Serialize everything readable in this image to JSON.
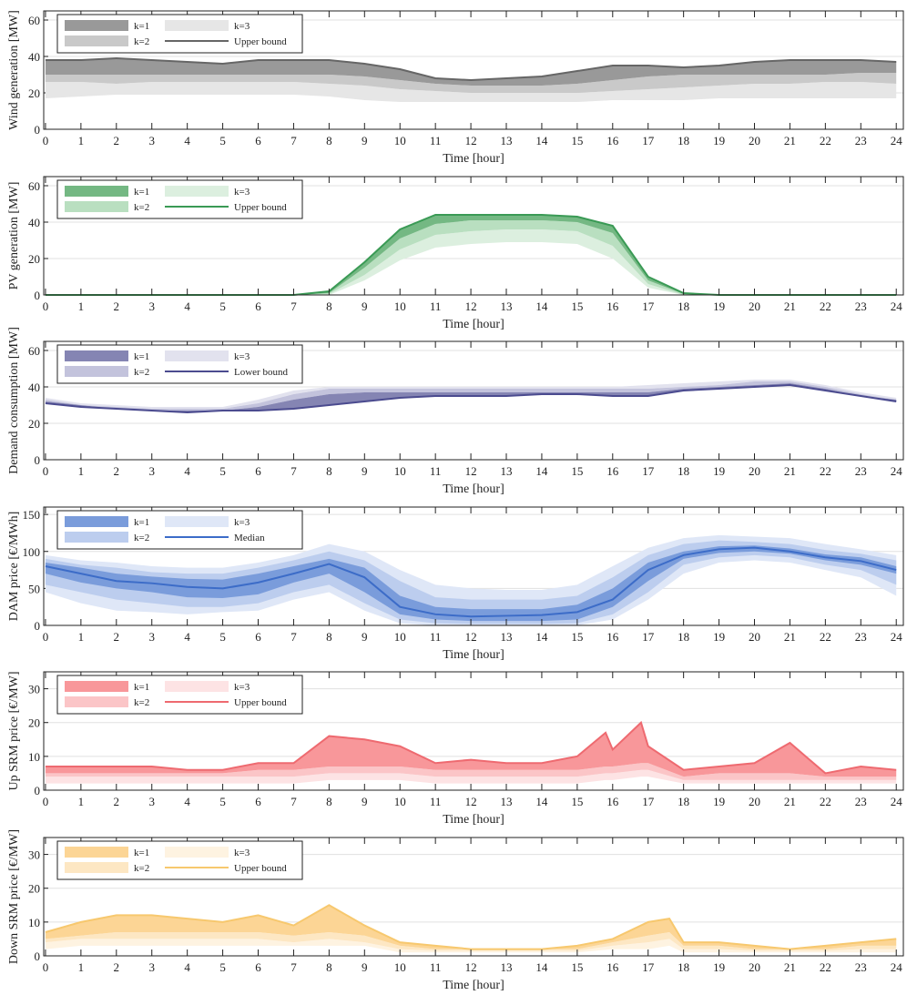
{
  "chart_data": [
    {
      "type": "area",
      "ylabel": "Wind generation [MW]",
      "xlabel": "Time [hour]",
      "ylim": [
        0,
        65
      ],
      "yticks": [
        0,
        20,
        40,
        60
      ],
      "xlim": [
        -0.05,
        24.2
      ],
      "x": [
        0,
        1,
        2,
        3,
        4,
        5,
        6,
        7,
        8,
        9,
        10,
        11,
        12,
        13,
        14,
        15,
        16,
        17,
        18,
        19,
        20,
        21,
        22,
        23,
        24
      ],
      "colors": {
        "k1": "#999999",
        "k2": "#c9c9c9",
        "k3": "#e6e6e6",
        "line": "#666666"
      },
      "line": {
        "name": "Upper bound",
        "values": [
          38,
          38,
          39,
          38,
          37,
          36,
          38,
          38,
          38,
          36,
          33,
          28,
          27,
          28,
          29,
          32,
          35,
          35,
          34,
          35,
          37,
          38,
          38,
          38,
          37
        ]
      },
      "bands": [
        {
          "name": "k=1",
          "lower": [
            30,
            30,
            30,
            30,
            30,
            30,
            30,
            30,
            30,
            29,
            27,
            25,
            24,
            24,
            24,
            25,
            27,
            29,
            30,
            30,
            30,
            30,
            30,
            31,
            31
          ],
          "upper": "line"
        },
        {
          "name": "k=2",
          "lower": [
            26,
            26,
            25,
            26,
            26,
            26,
            26,
            26,
            25,
            24,
            22,
            21,
            20,
            20,
            20,
            20,
            21,
            22,
            23,
            24,
            25,
            25,
            26,
            26,
            25
          ],
          "upper": "k1"
        },
        {
          "name": "k=3",
          "lower": [
            17,
            18,
            19,
            19,
            19,
            19,
            19,
            19,
            18,
            16,
            15,
            15,
            15,
            15,
            15,
            15,
            16,
            16,
            16,
            17,
            17,
            17,
            17,
            17,
            17
          ],
          "upper": "k2"
        }
      ]
    },
    {
      "type": "area",
      "ylabel": "PV generation [MW]",
      "xlabel": "Time [hour]",
      "ylim": [
        0,
        65
      ],
      "yticks": [
        0,
        20,
        40,
        60
      ],
      "xlim": [
        -0.05,
        24.2
      ],
      "x": [
        0,
        1,
        2,
        3,
        4,
        5,
        6,
        7,
        8,
        9,
        10,
        11,
        12,
        13,
        14,
        15,
        16,
        17,
        18,
        19,
        20,
        21,
        22,
        23,
        24
      ],
      "colors": {
        "k1": "#74b883",
        "k2": "#b9dfc0",
        "k3": "#dcefdf",
        "line": "#3a9a55"
      },
      "line": {
        "name": "Upper bound",
        "values": [
          0,
          0,
          0,
          0,
          0,
          0,
          0,
          0,
          2,
          18,
          36,
          44,
          44,
          44,
          44,
          43,
          38,
          10,
          1,
          0,
          0,
          0,
          0,
          0,
          0
        ]
      },
      "bands": [
        {
          "name": "k=1",
          "lower": [
            0,
            0,
            0,
            0,
            0,
            0,
            0,
            0,
            1,
            15,
            31,
            39,
            41,
            41,
            41,
            40,
            34,
            8,
            0.5,
            0,
            0,
            0,
            0,
            0,
            0
          ],
          "upper": "line"
        },
        {
          "name": "k=2",
          "lower": [
            0,
            0,
            0,
            0,
            0,
            0,
            0,
            0,
            0.5,
            11,
            25,
            33,
            35,
            36,
            36,
            35,
            27,
            6,
            0,
            0,
            0,
            0,
            0,
            0,
            0
          ],
          "upper": "k1"
        },
        {
          "name": "k=3",
          "lower": [
            0,
            0,
            0,
            0,
            0,
            0,
            0,
            0,
            0,
            8,
            19,
            26,
            28,
            29,
            29,
            28,
            20,
            4,
            0,
            0,
            0,
            0,
            0,
            0,
            0
          ],
          "upper": "k2"
        }
      ]
    },
    {
      "type": "area",
      "ylabel": "Demand consumption [MW]",
      "xlabel": "Time [hour]",
      "ylim": [
        0,
        65
      ],
      "yticks": [
        0,
        20,
        40,
        60
      ],
      "xlim": [
        -0.05,
        24.2
      ],
      "x": [
        0,
        1,
        2,
        3,
        4,
        5,
        6,
        7,
        8,
        9,
        10,
        11,
        12,
        13,
        14,
        15,
        16,
        17,
        18,
        19,
        20,
        21,
        22,
        23,
        24
      ],
      "colors": {
        "k1": "#8585b3",
        "k2": "#c3c3dc",
        "k3": "#e2e2ee",
        "line": "#4b4b8f"
      },
      "line": {
        "name": "Lower bound",
        "values": [
          31,
          29,
          28,
          27,
          26,
          27,
          27,
          28,
          30,
          32,
          34,
          35,
          35,
          35,
          36,
          36,
          35,
          35,
          38,
          39,
          40,
          41,
          38,
          35,
          32
        ]
      },
      "bands": [
        {
          "name": "k=1",
          "upper": [
            32,
            30,
            28,
            27,
            27,
            27,
            29,
            33,
            36,
            37,
            37,
            37,
            37,
            37,
            37,
            37,
            37,
            37,
            39,
            40,
            41,
            42,
            39,
            35,
            33
          ],
          "lower": "line"
        },
        {
          "name": "k=2",
          "upper": [
            33,
            30,
            29,
            28,
            28,
            28,
            31,
            36,
            39,
            39,
            39,
            39,
            39,
            39,
            39,
            39,
            39,
            39,
            40,
            41,
            43,
            43,
            40,
            36,
            33
          ],
          "lower": "k1"
        },
        {
          "name": "k=3",
          "upper": [
            34,
            31,
            30,
            29,
            29,
            29,
            33,
            38,
            40,
            40,
            40,
            40,
            40,
            40,
            40,
            40,
            40,
            41,
            42,
            43,
            44,
            44,
            41,
            37,
            34
          ],
          "lower": "k2"
        }
      ]
    },
    {
      "type": "area",
      "ylabel": "DAM price [€/MWh]",
      "xlabel": "Time [hour]",
      "ylim": [
        0,
        160
      ],
      "yticks": [
        0,
        50,
        100,
        150
      ],
      "xlim": [
        -0.05,
        24.2
      ],
      "x": [
        0,
        1,
        2,
        3,
        4,
        5,
        6,
        7,
        8,
        9,
        10,
        11,
        12,
        13,
        14,
        15,
        16,
        17,
        18,
        19,
        20,
        21,
        22,
        23,
        24
      ],
      "colors": {
        "k1": "#7a9cdb",
        "k2": "#bccdee",
        "k3": "#dfe7f7",
        "line": "#3c6cc8"
      },
      "line": {
        "name": "Median",
        "values": [
          80,
          70,
          60,
          57,
          52,
          50,
          58,
          70,
          83,
          65,
          25,
          15,
          12,
          13,
          14,
          18,
          35,
          75,
          95,
          103,
          105,
          100,
          92,
          87,
          75
        ]
      },
      "bands": [
        {
          "name": "k=1",
          "lower": [
            70,
            58,
            50,
            45,
            38,
            37,
            42,
            58,
            70,
            45,
            15,
            8,
            6,
            6,
            6,
            8,
            25,
            60,
            90,
            98,
            100,
            97,
            88,
            82,
            70
          ],
          "upper": [
            85,
            78,
            70,
            66,
            63,
            62,
            70,
            80,
            90,
            78,
            40,
            25,
            22,
            22,
            22,
            28,
            50,
            85,
            100,
            107,
            108,
            104,
            96,
            92,
            80
          ]
        },
        {
          "name": "k=2",
          "lower": [
            55,
            45,
            35,
            30,
            25,
            25,
            30,
            45,
            55,
            30,
            8,
            3,
            2,
            2,
            2,
            3,
            15,
            45,
            82,
            92,
            95,
            92,
            82,
            75,
            55
          ],
          "upper": [
            90,
            82,
            78,
            72,
            70,
            70,
            78,
            88,
            100,
            88,
            60,
            38,
            35,
            35,
            35,
            40,
            65,
            95,
            110,
            115,
            113,
            110,
            102,
            97,
            88
          ]
        },
        {
          "name": "k=3",
          "lower": [
            45,
            30,
            20,
            18,
            15,
            18,
            20,
            35,
            45,
            20,
            3,
            0,
            0,
            0,
            0,
            0,
            8,
            35,
            70,
            85,
            88,
            85,
            75,
            65,
            40
          ],
          "upper": [
            95,
            88,
            85,
            80,
            78,
            78,
            85,
            95,
            110,
            100,
            75,
            55,
            50,
            48,
            48,
            55,
            80,
            105,
            118,
            122,
            120,
            118,
            110,
            103,
            95
          ]
        }
      ]
    },
    {
      "type": "area",
      "ylabel": "Up SRM price [€/MW]",
      "xlabel": "Time [hour]",
      "ylim": [
        0,
        35
      ],
      "yticks": [
        0,
        10,
        20,
        30
      ],
      "xlim": [
        -0.05,
        24.2
      ],
      "x": [
        0,
        1,
        2,
        3,
        4,
        5,
        6,
        7,
        8,
        9,
        10,
        11,
        12,
        13,
        14,
        15,
        15.8,
        16,
        16.8,
        17,
        18,
        19,
        20,
        21,
        22,
        23,
        24
      ],
      "colors": {
        "k1": "#f8979a",
        "k2": "#fbc5c7",
        "k3": "#fde3e4",
        "line": "#ee6a70"
      },
      "line": {
        "name": "Upper bound",
        "values": [
          7,
          7,
          7,
          7,
          6,
          6,
          8,
          8,
          16,
          15,
          13,
          8,
          9,
          8,
          8,
          10,
          17,
          12,
          20,
          13,
          6,
          7,
          8,
          14,
          5,
          7,
          6
        ]
      },
      "bands": [
        {
          "name": "k=1",
          "lower": [
            5,
            5,
            5,
            5,
            5,
            5,
            6,
            6,
            7,
            7,
            7,
            6,
            6,
            6,
            6,
            6,
            7,
            7,
            8,
            8,
            4,
            5,
            5,
            5,
            4,
            4,
            4
          ],
          "upper": "line"
        },
        {
          "name": "k=2",
          "lower": [
            4,
            4,
            4,
            4,
            4,
            4,
            4,
            4,
            5,
            5,
            5,
            4,
            4,
            4,
            4,
            4,
            5,
            5,
            6,
            6,
            3,
            3,
            3,
            3,
            3,
            3,
            3
          ],
          "upper": "k1"
        },
        {
          "name": "k=3",
          "lower": [
            2,
            2,
            2,
            2,
            2,
            2,
            2,
            2,
            3,
            3,
            3,
            2,
            2,
            2,
            2,
            2,
            3,
            3,
            4,
            4,
            2,
            2,
            2,
            2,
            2,
            2,
            2
          ],
          "upper": "k2"
        }
      ]
    },
    {
      "type": "area",
      "ylabel": "Down SRM price [€/MW]",
      "xlabel": "Time [hour]",
      "ylim": [
        0,
        35
      ],
      "yticks": [
        0,
        10,
        20,
        30
      ],
      "xlim": [
        -0.05,
        24.2
      ],
      "x": [
        0,
        1,
        2,
        3,
        4,
        5,
        6,
        7,
        8,
        9,
        10,
        11,
        12,
        13,
        14,
        15,
        16,
        17,
        17.6,
        18,
        19,
        20,
        21,
        22,
        23,
        24
      ],
      "colors": {
        "k1": "#fcd595",
        "k2": "#fde7c3",
        "k3": "#fef3e1",
        "line": "#f7c86e"
      },
      "line": {
        "name": "Upper bound",
        "values": [
          7,
          10,
          12,
          12,
          11,
          10,
          12,
          9,
          15,
          9,
          4,
          3,
          2,
          2,
          2,
          3,
          5,
          10,
          11,
          4,
          4,
          3,
          2,
          3,
          4,
          5
        ]
      },
      "bands": [
        {
          "name": "k=1",
          "lower": [
            5,
            6,
            7,
            7,
            7,
            7,
            7,
            6,
            7,
            6,
            3,
            2,
            2,
            2,
            2,
            2,
            4,
            6,
            7,
            3,
            3,
            2,
            2,
            2,
            3,
            3
          ],
          "upper": "line"
        },
        {
          "name": "k=2",
          "lower": [
            4,
            5,
            5,
            5,
            5,
            5,
            5,
            4,
            5,
            4,
            2,
            1.5,
            1.5,
            1.5,
            1.5,
            1.5,
            3,
            4,
            5,
            2,
            2,
            1.5,
            1.5,
            1.5,
            2,
            2
          ],
          "upper": "k1"
        },
        {
          "name": "k=3",
          "lower": [
            2,
            3,
            3,
            3,
            3,
            3,
            3,
            3,
            3,
            3,
            1,
            1,
            1,
            1,
            1,
            1,
            2,
            2,
            3,
            1,
            1,
            1,
            1,
            1,
            1,
            1
          ],
          "upper": "k2"
        }
      ]
    }
  ],
  "xticks": [
    "0",
    "1",
    "2",
    "3",
    "4",
    "5",
    "6",
    "7",
    "8",
    "9",
    "10",
    "11",
    "12",
    "13",
    "14",
    "15",
    "16",
    "17",
    "18",
    "19",
    "20",
    "21",
    "22",
    "23",
    "24"
  ]
}
